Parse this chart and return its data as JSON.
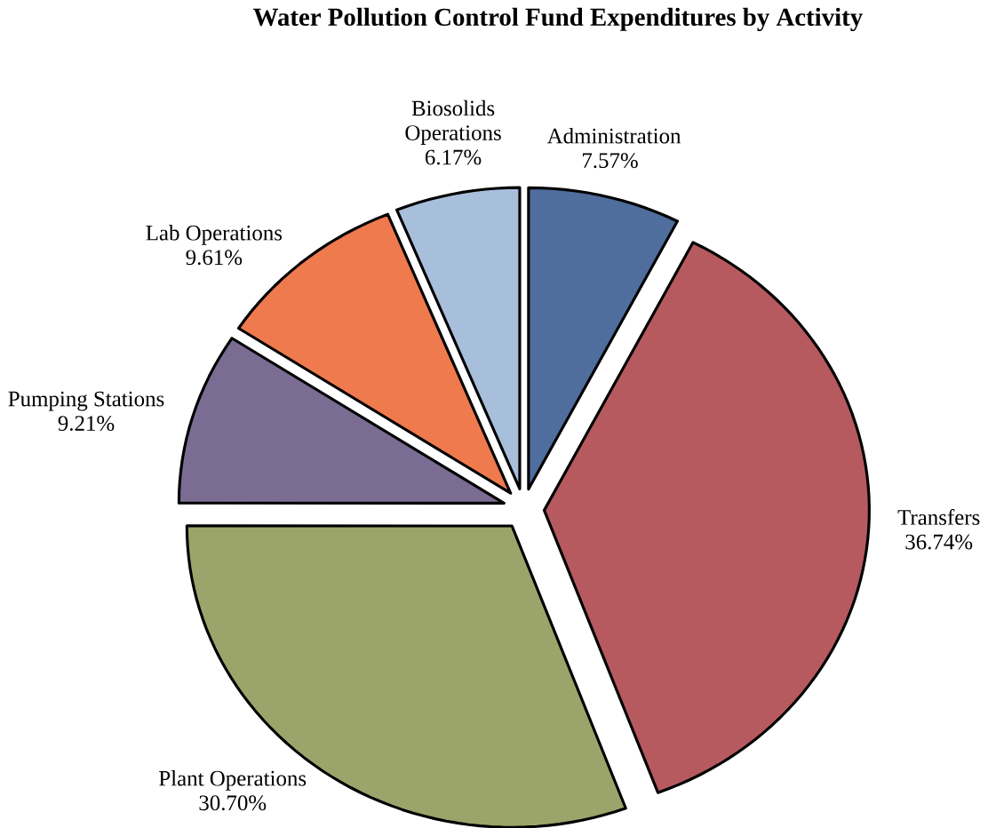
{
  "chart_data": {
    "type": "pie",
    "title": "Water Pollution Control Fund Expenditures by Activity",
    "categories": [
      "Administration",
      "Transfers",
      "Plant Operations",
      "Pumping Stations",
      "Lab Operations",
      "Biosolids Operations"
    ],
    "values": [
      7.57,
      36.74,
      30.7,
      9.21,
      9.61,
      6.17
    ],
    "value_labels": [
      "7.57%",
      "36.74%",
      "30.70%",
      "9.21%",
      "9.61%",
      "6.17%"
    ],
    "colors": [
      "#4f6e9e",
      "#b65a5f",
      "#9ba56b",
      "#7a6c93",
      "#ef7a4e",
      "#a8bfdc"
    ]
  }
}
